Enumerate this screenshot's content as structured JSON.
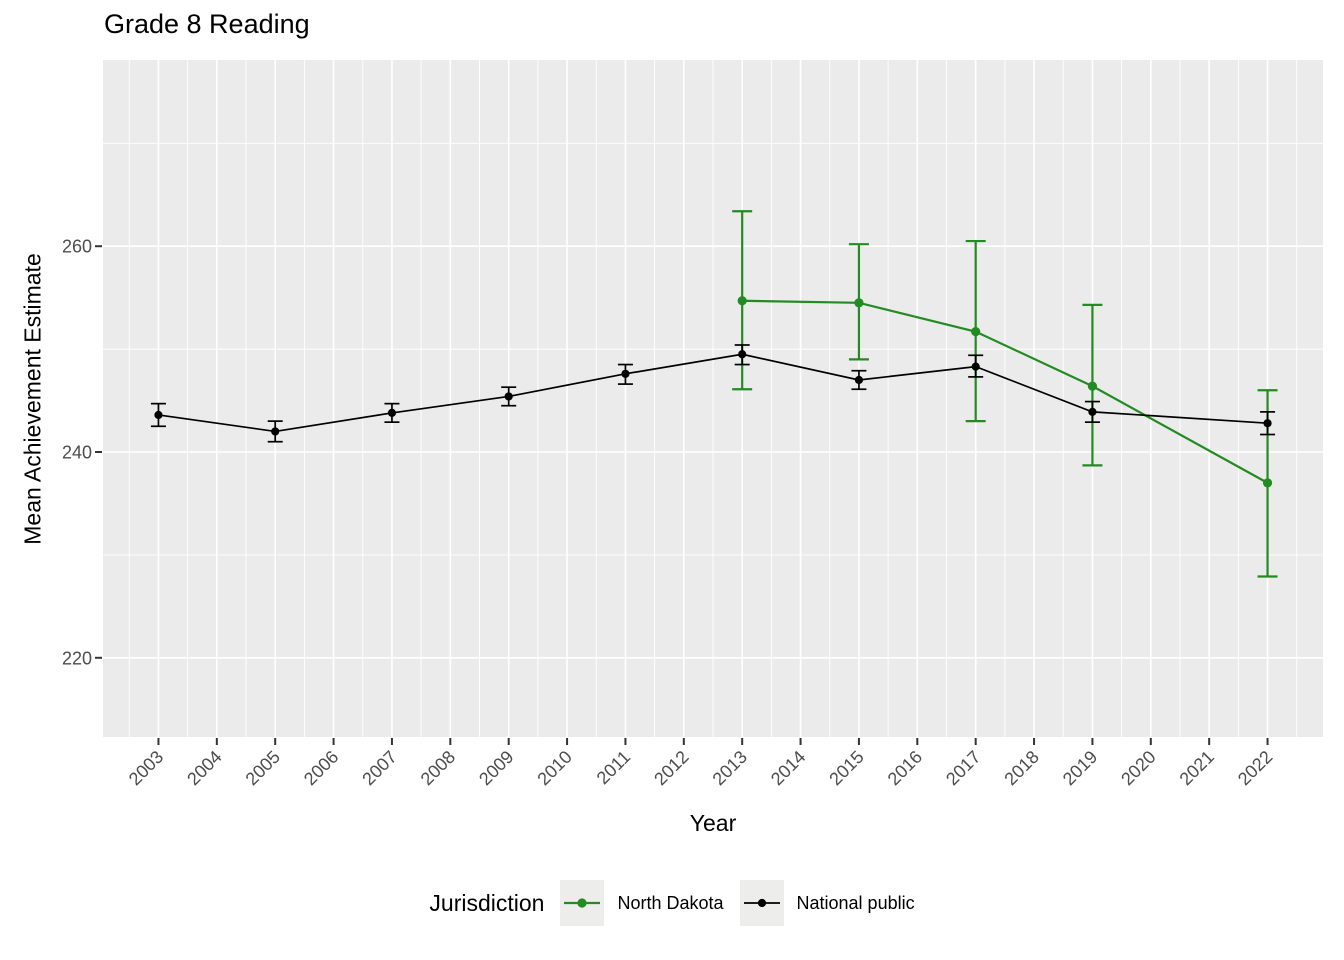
{
  "chart_data": {
    "type": "line",
    "title": "Grade 8 Reading",
    "xlabel": "Year",
    "ylabel": "Mean Achievement Estimate",
    "legend_title": "Jurisdiction",
    "legend_position": "bottom",
    "grid": true,
    "x_ticks": [
      2003,
      2004,
      2005,
      2006,
      2007,
      2008,
      2009,
      2010,
      2011,
      2012,
      2013,
      2014,
      2015,
      2016,
      2017,
      2018,
      2019,
      2020,
      2021,
      2022
    ],
    "y_ticks": [
      220,
      240,
      260
    ],
    "y_minor_ticks": [
      230,
      250,
      270
    ],
    "x_range": [
      2002.05,
      2022.95
    ],
    "y_range": [
      212.3,
      278.1
    ],
    "series": [
      {
        "name": "North Dakota",
        "color": "#228B22",
        "x": [
          2013,
          2015,
          2017,
          2019,
          2022
        ],
        "y": [
          254.7,
          254.5,
          251.7,
          246.4,
          237.0
        ],
        "y_lo": [
          246.1,
          249.0,
          243.0,
          238.7,
          227.9
        ],
        "y_hi": [
          263.4,
          260.2,
          260.5,
          254.3,
          246.0
        ]
      },
      {
        "name": "National public",
        "color": "#000000",
        "x": [
          2003,
          2005,
          2007,
          2009,
          2011,
          2013,
          2015,
          2017,
          2019,
          2022
        ],
        "y": [
          243.6,
          242.0,
          243.8,
          245.4,
          247.6,
          249.5,
          247.0,
          248.3,
          243.9,
          242.8
        ],
        "y_lo": [
          242.5,
          241.0,
          242.9,
          244.5,
          246.6,
          248.5,
          246.1,
          247.3,
          242.9,
          241.7
        ],
        "y_hi": [
          244.7,
          243.0,
          244.7,
          246.3,
          248.5,
          250.4,
          247.9,
          249.4,
          244.9,
          243.9
        ]
      }
    ]
  },
  "colors": {
    "panel_background": "#ebebeb",
    "gridline": "#ffffff",
    "tick_label": "#4d4d4d",
    "tick_mark": "#333333",
    "legend_key_background": "#ededeb"
  }
}
